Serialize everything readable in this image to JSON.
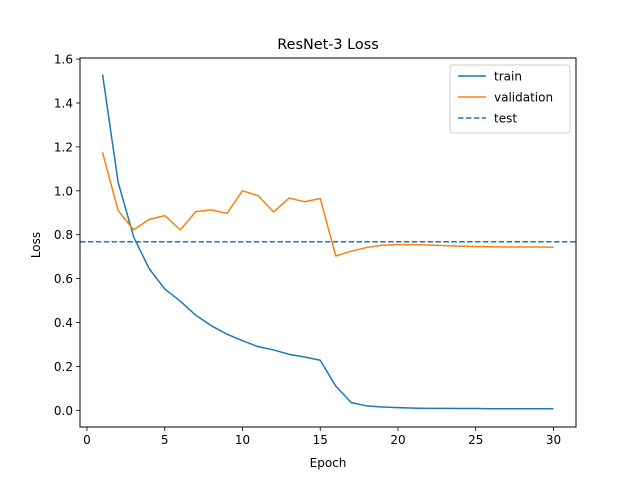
{
  "chart_data": {
    "type": "line",
    "title": "ResNet-3 Loss",
    "xlabel": "Epoch",
    "ylabel": "Loss",
    "xlim": [
      -0.45,
      31.45
    ],
    "ylim": [
      -0.076,
      1.605
    ],
    "xticks": [
      0,
      5,
      10,
      15,
      20,
      25,
      30
    ],
    "yticks": [
      0.0,
      0.2,
      0.4,
      0.6,
      0.8,
      1.0,
      1.2,
      1.4,
      1.6
    ],
    "grid": false,
    "legend_position": "top-right",
    "x": [
      1,
      2,
      3,
      4,
      5,
      6,
      7,
      8,
      9,
      10,
      11,
      12,
      13,
      14,
      15,
      16,
      17,
      18,
      19,
      20,
      21,
      22,
      23,
      24,
      25,
      26,
      27,
      28,
      29,
      30
    ],
    "series": [
      {
        "name": "train",
        "color": "#1f77b4",
        "style": "solid",
        "values": [
          1.53,
          1.04,
          0.79,
          0.645,
          0.553,
          0.497,
          0.433,
          0.385,
          0.347,
          0.317,
          0.29,
          0.275,
          0.255,
          0.243,
          0.228,
          0.11,
          0.035,
          0.02,
          0.015,
          0.012,
          0.01,
          0.009,
          0.009,
          0.008,
          0.008,
          0.007,
          0.007,
          0.007,
          0.007,
          0.007
        ]
      },
      {
        "name": "validation",
        "color": "#ff7f0e",
        "style": "solid",
        "values": [
          1.175,
          0.91,
          0.822,
          0.87,
          0.887,
          0.822,
          0.905,
          0.913,
          0.897,
          1.0,
          0.978,
          0.904,
          0.967,
          0.95,
          0.965,
          0.703,
          0.725,
          0.742,
          0.752,
          0.755,
          0.755,
          0.753,
          0.75,
          0.748,
          0.746,
          0.745,
          0.744,
          0.744,
          0.744,
          0.743
        ]
      },
      {
        "name": "test",
        "color": "#1f77b4",
        "style": "dashed",
        "constant": 0.768
      }
    ]
  }
}
